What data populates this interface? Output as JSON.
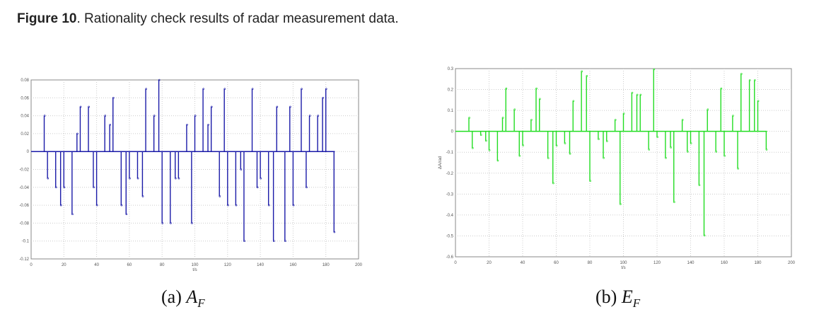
{
  "figure": {
    "label": "Figure 10",
    "text": ". Rationality check results of radar measurement data."
  },
  "chart_data": [
    {
      "type": "stem",
      "caption_prefix": "(a) ",
      "caption_var": "A",
      "caption_sub": "F",
      "xlabel": "t/s",
      "ylabel": "",
      "xlim": [
        0,
        200
      ],
      "ylim": [
        -0.12,
        0.08
      ],
      "xticks": [
        0,
        20,
        40,
        60,
        80,
        100,
        120,
        140,
        160,
        180,
        200
      ],
      "yticks": [
        -0.12,
        -0.1,
        -0.08,
        -0.06,
        -0.04,
        -0.02,
        0,
        0.02,
        0.04,
        0.06,
        0.08
      ],
      "ytick_labels": [
        "-0.12",
        "-0.1",
        "-0.08",
        "-0.06",
        "-0.04",
        "-0.02",
        "0",
        "0.02",
        "0.04",
        "0.06",
        "0.08"
      ],
      "grid": true,
      "color": "#1a1aa8",
      "x": [
        8,
        10,
        15,
        18,
        20,
        25,
        28,
        30,
        35,
        38,
        40,
        45,
        48,
        50,
        55,
        58,
        60,
        65,
        68,
        70,
        75,
        78,
        80,
        85,
        88,
        90,
        95,
        98,
        100,
        105,
        108,
        110,
        115,
        118,
        120,
        125,
        128,
        130,
        135,
        138,
        140,
        145,
        148,
        150,
        155,
        158,
        160,
        165,
        168,
        170,
        175,
        178,
        180,
        185
      ],
      "y": [
        0.04,
        -0.03,
        -0.04,
        -0.06,
        -0.04,
        -0.07,
        0.02,
        0.05,
        0.05,
        -0.04,
        -0.06,
        0.04,
        0.03,
        0.06,
        -0.06,
        -0.07,
        -0.03,
        -0.03,
        -0.05,
        0.07,
        0.04,
        0.08,
        -0.08,
        -0.08,
        -0.03,
        -0.03,
        0.03,
        -0.08,
        0.04,
        0.07,
        0.03,
        0.05,
        -0.05,
        0.07,
        -0.06,
        -0.06,
        -0.02,
        -0.1,
        0.07,
        -0.04,
        -0.03,
        -0.06,
        -0.1,
        0.05,
        -0.1,
        0.05,
        -0.06,
        0.07,
        -0.04,
        0.04,
        0.04,
        0.06,
        0.07,
        -0.09
      ]
    },
    {
      "type": "stem",
      "caption_prefix": "(b) ",
      "caption_var": "E",
      "caption_sub": "F",
      "xlabel": "t/s",
      "ylabel": "ΔA/rad",
      "xlim": [
        0,
        200
      ],
      "ylim": [
        -0.6,
        0.3
      ],
      "xticks": [
        0,
        20,
        40,
        60,
        80,
        100,
        120,
        140,
        160,
        180,
        200
      ],
      "yticks": [
        -0.6,
        -0.5,
        -0.4,
        -0.3,
        -0.2,
        -0.1,
        0,
        0.1,
        0.2,
        0.3
      ],
      "ytick_labels": [
        "-0.6",
        "-0.5",
        "-0.4",
        "-0.3",
        "-0.2",
        "-0.1",
        "0",
        "0.1",
        "0.2",
        "0.3"
      ],
      "grid": true,
      "color": "#22dd22",
      "x": [
        8,
        10,
        15,
        18,
        20,
        25,
        28,
        30,
        35,
        38,
        40,
        45,
        48,
        50,
        55,
        58,
        60,
        65,
        68,
        70,
        75,
        78,
        80,
        85,
        88,
        90,
        95,
        98,
        100,
        105,
        108,
        110,
        115,
        118,
        120,
        125,
        128,
        130,
        135,
        138,
        140,
        145,
        148,
        150,
        155,
        158,
        160,
        165,
        168,
        170,
        175,
        178,
        180,
        185
      ],
      "y": [
        0.065,
        -0.08,
        -0.017,
        -0.045,
        -0.09,
        -0.14,
        0.065,
        0.205,
        0.105,
        -0.117,
        -0.067,
        0.055,
        0.205,
        0.155,
        -0.128,
        -0.248,
        -0.068,
        -0.057,
        -0.107,
        0.145,
        0.287,
        0.265,
        -0.237,
        -0.037,
        -0.127,
        -0.047,
        0.055,
        -0.348,
        0.085,
        0.185,
        0.175,
        0.175,
        -0.087,
        0.297,
        -0.027,
        -0.127,
        -0.077,
        -0.338,
        0.055,
        -0.097,
        -0.057,
        -0.257,
        -0.498,
        0.105,
        -0.097,
        0.205,
        -0.117,
        0.075,
        -0.178,
        0.275,
        0.245,
        0.245,
        0.145,
        -0.087
      ]
    }
  ]
}
